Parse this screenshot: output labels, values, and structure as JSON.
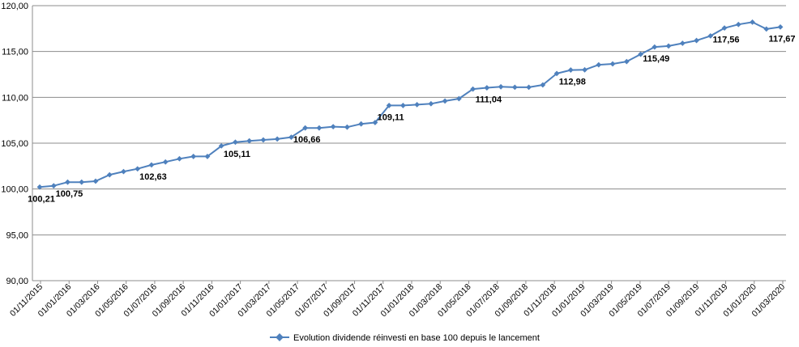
{
  "chart_data": {
    "type": "line",
    "title": "",
    "xlabel": "",
    "ylabel": "",
    "ylim": [
      90,
      120
    ],
    "y_ticks": [
      "90,00",
      "95,00",
      "100,00",
      "105,00",
      "110,00",
      "115,00",
      "120,00"
    ],
    "grid": "horizontal",
    "legend_position": "bottom",
    "x_tick_labels": [
      "01/11/2015",
      "01/01/2016",
      "01/03/2016",
      "01/05/2016",
      "01/07/2016",
      "01/09/2016",
      "01/11/2016",
      "01/01/2017",
      "01/03/2017",
      "01/05/2017",
      "01/07/2017",
      "01/09/2017",
      "01/11/2017",
      "01/01/2018",
      "01/03/2018",
      "01/05/2018",
      "01/07/2018",
      "01/09/2018",
      "01/11/2018",
      "01/01/2019",
      "01/03/2019",
      "01/05/2019",
      "01/07/2019",
      "01/09/2019",
      "01/11/2019",
      "01/01/2020",
      "01/03/2020"
    ],
    "colors": {
      "series": "#4f81bd",
      "grid": "#8c8c8c",
      "axis": "#8c8c8c"
    },
    "series": [
      {
        "name": "Evolution dividende réinvesti en base 100 depuis le lancement",
        "values": [
          100.21,
          100.35,
          100.75,
          100.75,
          100.85,
          101.55,
          101.9,
          102.2,
          102.63,
          102.95,
          103.3,
          103.55,
          103.55,
          104.7,
          105.11,
          105.25,
          105.35,
          105.45,
          105.65,
          106.66,
          106.66,
          106.8,
          106.75,
          107.1,
          107.25,
          109.11,
          109.11,
          109.2,
          109.3,
          109.6,
          109.85,
          110.9,
          111.04,
          111.15,
          111.1,
          111.1,
          111.35,
          112.6,
          112.98,
          113.0,
          113.55,
          113.65,
          113.9,
          114.7,
          115.49,
          115.6,
          115.9,
          116.2,
          116.7,
          117.56,
          117.95,
          118.2,
          117.45,
          117.67
        ]
      }
    ],
    "data_labels": [
      {
        "index": 0,
        "text": "100,21"
      },
      {
        "index": 2,
        "text": "100,75"
      },
      {
        "index": 8,
        "text": "102,63"
      },
      {
        "index": 14,
        "text": "105,11"
      },
      {
        "index": 19,
        "text": "106,66"
      },
      {
        "index": 25,
        "text": "109,11"
      },
      {
        "index": 32,
        "text": "111,04"
      },
      {
        "index": 38,
        "text": "112,98"
      },
      {
        "index": 44,
        "text": "115,49"
      },
      {
        "index": 49,
        "text": "117,56"
      },
      {
        "index": 53,
        "text": "117,67"
      }
    ]
  }
}
